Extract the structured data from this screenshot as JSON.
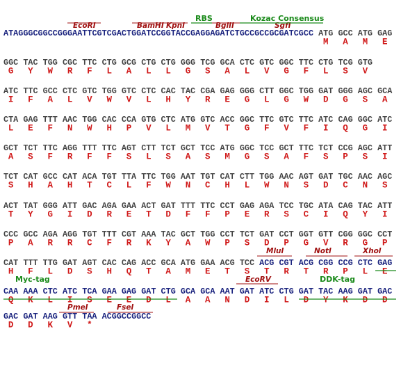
{
  "sequence": {
    "lead": "ATAGGGCGGCCGGGAATTCGTCGACTGGATCCGGTACCGAGGAGATCTGCCGCCGCGATCGCC",
    "rows": [
      {
        "codons": [
          "ATG",
          "GCC",
          "ATG",
          "GAG"
        ],
        "aa": [
          "M",
          "A",
          "M",
          "E"
        ]
      },
      {
        "codons": [
          "GGC",
          "TAC",
          "TGG",
          "CGC",
          "TTC",
          "CTG",
          "GCG",
          "CTG",
          "CTG",
          "GGG",
          "TCG",
          "GCA",
          "CTC",
          "GTC",
          "GGC",
          "TTC",
          "CTG",
          "TCG",
          "GTG"
        ],
        "aa": [
          "G",
          "Y",
          "W",
          "R",
          "F",
          "L",
          "A",
          "L",
          "L",
          "G",
          "S",
          "A",
          "L",
          "V",
          "G",
          "F",
          "L",
          "S",
          "V"
        ]
      },
      {
        "codons": [
          "ATC",
          "TTC",
          "GCC",
          "CTC",
          "GTC",
          "TGG",
          "GTC",
          "CTC",
          "CAC",
          "TAC",
          "CGA",
          "GAG",
          "GGG",
          "CTT",
          "GGC",
          "TGG",
          "GAT",
          "GGG",
          "AGC",
          "GCA"
        ],
        "aa": [
          "I",
          "F",
          "A",
          "L",
          "V",
          "W",
          "V",
          "L",
          "H",
          "Y",
          "R",
          "E",
          "G",
          "L",
          "G",
          "W",
          "D",
          "G",
          "S",
          "A"
        ]
      },
      {
        "codons": [
          "CTA",
          "GAG",
          "TTT",
          "AAC",
          "TGG",
          "CAC",
          "CCA",
          "GTG",
          "CTC",
          "ATG",
          "GTC",
          "ACC",
          "GGC",
          "TTC",
          "GTC",
          "TTC",
          "ATC",
          "CAG",
          "GGC",
          "ATC"
        ],
        "aa": [
          "L",
          "E",
          "F",
          "N",
          "W",
          "H",
          "P",
          "V",
          "L",
          "M",
          "V",
          "T",
          "G",
          "F",
          "V",
          "F",
          "I",
          "Q",
          "G",
          "I"
        ]
      },
      {
        "codons": [
          "GCT",
          "TCT",
          "TTC",
          "AGG",
          "TTT",
          "TTC",
          "AGT",
          "CTT",
          "TCT",
          "GCT",
          "TCC",
          "ATG",
          "GGC",
          "TCC",
          "GCT",
          "TTC",
          "TCT",
          "CCG",
          "AGC",
          "ATT"
        ],
        "aa": [
          "A",
          "S",
          "F",
          "R",
          "F",
          "F",
          "S",
          "L",
          "S",
          "A",
          "S",
          "M",
          "G",
          "S",
          "A",
          "F",
          "S",
          "P",
          "S",
          "I"
        ]
      },
      {
        "codons": [
          "TCT",
          "CAT",
          "GCC",
          "CAT",
          "ACA",
          "TGT",
          "TTA",
          "TTC",
          "TGG",
          "AAT",
          "TGT",
          "CAT",
          "CTT",
          "TGG",
          "AAC",
          "AGT",
          "GAT",
          "TGC",
          "AAC",
          "AGC"
        ],
        "aa": [
          "S",
          "H",
          "A",
          "H",
          "T",
          "C",
          "L",
          "F",
          "W",
          "N",
          "C",
          "H",
          "L",
          "W",
          "N",
          "S",
          "D",
          "C",
          "N",
          "S"
        ]
      },
      {
        "codons": [
          "ACT",
          "TAT",
          "GGG",
          "ATT",
          "GAC",
          "AGA",
          "GAA",
          "ACT",
          "GAT",
          "TTT",
          "TTC",
          "CCT",
          "GAG",
          "AGA",
          "TCC",
          "TGC",
          "ATA",
          "CAG",
          "TAC",
          "ATT"
        ],
        "aa": [
          "T",
          "Y",
          "G",
          "I",
          "D",
          "R",
          "E",
          "T",
          "D",
          "F",
          "F",
          "P",
          "E",
          "R",
          "S",
          "C",
          "I",
          "Q",
          "Y",
          "I"
        ]
      },
      {
        "codons": [
          "CCC",
          "GCC",
          "AGA",
          "AGG",
          "TGT",
          "TTT",
          "CGT",
          "AAA",
          "TAC",
          "GCT",
          "TGG",
          "CCT",
          "TCT",
          "GAT",
          "CCT",
          "GGT",
          "GTT",
          "CGG",
          "GGC",
          "CCT"
        ],
        "aa": [
          "P",
          "A",
          "R",
          "R",
          "C",
          "F",
          "R",
          "K",
          "Y",
          "A",
          "W",
          "P",
          "S",
          "D",
          "P",
          "G",
          "V",
          "R",
          "G",
          "P"
        ]
      },
      {
        "codons": [
          "CAT",
          "TTT",
          "TTG",
          "GAT",
          "AGT",
          "CAC",
          "CAG",
          "ACC",
          "GCA",
          "ATG",
          "GAA",
          "ACG",
          "TCC",
          "ACG",
          "CGT",
          "ACG",
          "CGG",
          "CCG",
          "CTC",
          "GAG"
        ],
        "aa": [
          "H",
          "F",
          "L",
          "D",
          "S",
          "H",
          "Q",
          "T",
          "A",
          "M",
          "E",
          "T",
          "S",
          "T",
          "R",
          "T",
          "R",
          "P",
          "L",
          "E"
        ]
      },
      {
        "codons": [
          "CAA",
          "AAA",
          "CTC",
          "ATC",
          "TCA",
          "GAA",
          "GAG",
          "GAT",
          "CTG",
          "GCA",
          "GCA",
          "AAT",
          "GAT",
          "ATC",
          "CTG",
          "GAT",
          "TAC",
          "AAG",
          "GAT",
          "GAC"
        ],
        "aa": [
          "Q",
          "K",
          "L",
          "I",
          "S",
          "E",
          "E",
          "D",
          "L",
          "A",
          "A",
          "N",
          "D",
          "I",
          "L",
          "D",
          "Y",
          "K",
          "D",
          "D"
        ]
      },
      {
        "codons": [
          "GAC",
          "GAT",
          "AAG",
          "GTT",
          "TAA"
        ],
        "aa": [
          "D",
          "D",
          "K",
          "V",
          "*"
        ]
      }
    ],
    "tail": "ACGGCCGGCC",
    "sites": [
      "EcoRI",
      "BamHI",
      "KpnI",
      "BglII",
      "SgfI",
      "MluI",
      "NotI",
      "XhoI",
      "EcoRV",
      "PmeI",
      "FseI"
    ],
    "features": [
      "RBS",
      "Kozac Consensus",
      "Myc-tag",
      "DDK-tag"
    ]
  }
}
